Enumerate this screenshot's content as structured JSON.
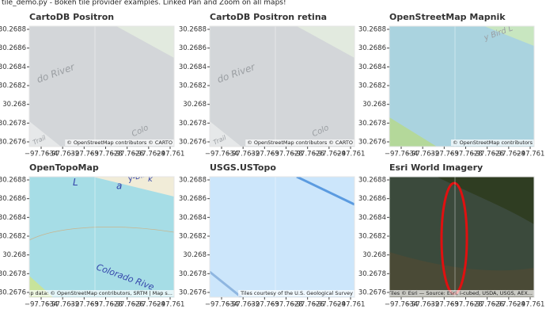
{
  "header": {
    "title": "tile_demo.py - Bokeh tile provider examples. Linked Pan and Zoom on all maps!"
  },
  "axes": {
    "y_ticks": [
      "30.2688",
      "30.2686",
      "30.2684",
      "30.2682",
      "30.268",
      "30.2678",
      "30.2676"
    ],
    "x_ticks": [
      "−97.7634",
      "−97.7632",
      "−97.763",
      "−97.7628",
      "−97.7626",
      "−97.7624",
      "−97.761"
    ]
  },
  "panels": [
    {
      "title": "CartoDB Positron",
      "attribution": "© OpenStreetMap contributors © CARTO",
      "map_labels": [
        "do River",
        "Colo",
        "Trail"
      ]
    },
    {
      "title": "CartoDB Positron retina",
      "attribution": "© OpenStreetMap contributors © CARTO",
      "map_labels": [
        "do River",
        "Colo",
        "Trail"
      ]
    },
    {
      "title": "OpenStreetMap Mapnik",
      "attribution": "© OpenStreetMap contributors",
      "map_labels": [
        "y Bird L"
      ]
    },
    {
      "title": "OpenTopoMap",
      "attribution": "Map data: © OpenStreetMap contributors, SRTM | Map s...",
      "map_labels": [
        "Colorado Rive",
        "L",
        "a",
        "y-Bird-L",
        "k"
      ]
    },
    {
      "title": "USGS.USTopo",
      "attribution": "Tiles courtesy of the U.S. Geological Survey",
      "map_labels": []
    },
    {
      "title": "Esri World Imagery",
      "attribution": "Tiles © Esri — Source: Esri, i-cubed, USDA, USGS, AEX...",
      "map_labels": []
    }
  ]
}
